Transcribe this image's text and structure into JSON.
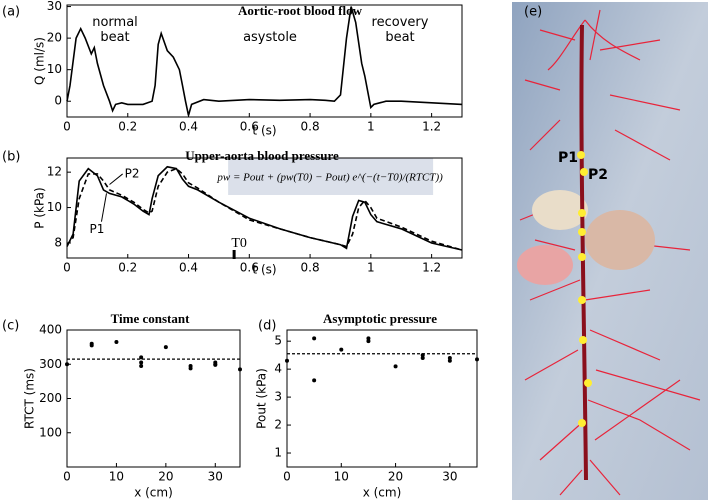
{
  "chart_data": [
    {
      "type": "line",
      "panel_label": "(a)",
      "title": "Aortic-root blood flow",
      "x_label": "t (s)",
      "y_label": "Q (ml/s)",
      "xlim": [
        0,
        1.3
      ],
      "ylim": [
        -5,
        30.5
      ],
      "xticks": [
        0,
        0.2,
        0.4,
        0.6,
        0.8,
        1,
        1.2
      ],
      "yticks": [
        0,
        10,
        20,
        30
      ],
      "annotations": [
        "normal beat",
        "asystole",
        "recovery beat"
      ],
      "x": [
        0,
        0.01,
        0.03,
        0.045,
        0.06,
        0.08,
        0.09,
        0.1,
        0.12,
        0.14,
        0.15,
        0.16,
        0.18,
        0.2,
        0.25,
        0.28,
        0.29,
        0.3,
        0.31,
        0.33,
        0.35,
        0.37,
        0.38,
        0.39,
        0.4,
        0.41,
        0.45,
        0.5,
        0.6,
        0.7,
        0.8,
        0.85,
        0.88,
        0.9,
        0.92,
        0.935,
        0.95,
        0.97,
        0.98,
        0.99,
        1.0,
        1.01,
        1.05,
        1.1,
        1.2,
        1.3
      ],
      "series": [
        {
          "color": "#000000",
          "dash": false,
          "values": [
            0,
            5,
            20,
            23,
            20,
            15,
            17,
            12,
            5,
            0,
            -3,
            -1,
            -0.5,
            -1,
            -1,
            0,
            5,
            18,
            21.5,
            16,
            14,
            10,
            5,
            0,
            -4.5,
            -1,
            0.5,
            0,
            0.5,
            0.3,
            0.5,
            0.3,
            0,
            2,
            20,
            30,
            25,
            12,
            8,
            3,
            -2,
            -1,
            0,
            0,
            -0.5,
            -1
          ]
        }
      ]
    },
    {
      "type": "line",
      "panel_label": "(b)",
      "title": "Upper-aorta blood pressure",
      "x_label": "t (s)",
      "y_label": "P (kPa)",
      "xlim": [
        0,
        1.3
      ],
      "ylim": [
        7.15,
        12.8
      ],
      "xticks": [
        0,
        0.2,
        0.4,
        0.6,
        0.8,
        1,
        1.2
      ],
      "yticks": [
        8,
        10,
        12
      ],
      "formula": "pw = Pout + (pw(T0) − Pout) e^(−(t−T0)/(RTCT))",
      "marker": {
        "label": "T0",
        "x": 0.55
      },
      "x": [
        0,
        0.02,
        0.04,
        0.07,
        0.1,
        0.12,
        0.14,
        0.18,
        0.22,
        0.25,
        0.27,
        0.28,
        0.3,
        0.33,
        0.36,
        0.38,
        0.4,
        0.43,
        0.5,
        0.6,
        0.7,
        0.8,
        0.9,
        0.92,
        0.94,
        0.96,
        0.98,
        1.0,
        1.02,
        1.1,
        1.2,
        1.3
      ],
      "series": [
        {
          "name": "P1",
          "color": "#000000",
          "dash": false,
          "values": [
            7.8,
            8.5,
            11.5,
            12.2,
            11.8,
            11.0,
            10.8,
            10.6,
            10.2,
            9.8,
            9.6,
            10.5,
            11.8,
            12.3,
            12.2,
            11.6,
            11.2,
            11.0,
            10.3,
            9.4,
            8.8,
            8.3,
            7.9,
            7.7,
            9.5,
            10.4,
            10.3,
            9.6,
            9.2,
            8.8,
            8.0,
            7.6
          ]
        },
        {
          "name": "P2",
          "color": "#000000",
          "dash": true,
          "values": [
            7.9,
            8.3,
            10.5,
            11.9,
            11.9,
            11.5,
            11.0,
            10.7,
            10.3,
            9.9,
            9.7,
            9.8,
            11.2,
            12.0,
            12.2,
            11.9,
            11.4,
            11.1,
            10.3,
            9.3,
            8.8,
            8.3,
            7.9,
            7.8,
            8.5,
            10.0,
            10.4,
            10.0,
            9.4,
            8.9,
            8.1,
            7.6
          ]
        }
      ]
    },
    {
      "type": "scatter",
      "panel_label": "(c)",
      "title": "Time constant",
      "x_label": "x (cm)",
      "y_label": "RTCT (ms)",
      "xlim": [
        0,
        35
      ],
      "ylim": [
        0,
        400
      ],
      "xticks": [
        0,
        10,
        20,
        30
      ],
      "yticks": [
        100,
        200,
        300,
        400
      ],
      "color": "#000000",
      "reference_line": 315,
      "x": [
        0,
        5,
        5,
        10,
        15,
        15,
        15,
        20,
        25,
        25,
        30,
        30,
        30,
        35
      ],
      "values": [
        300,
        360,
        355,
        365,
        320,
        305,
        295,
        350,
        295,
        288,
        305,
        300,
        298,
        285
      ]
    },
    {
      "type": "scatter",
      "panel_label": "(d)",
      "title": "Asymptotic pressure",
      "x_label": "x (cm)",
      "y_label": "Pout (kPa)",
      "xlim": [
        0,
        35
      ],
      "ylim": [
        0.5,
        5.4
      ],
      "xticks": [
        0,
        10,
        20,
        30
      ],
      "yticks": [
        1,
        2,
        3,
        4,
        5
      ],
      "color": "#000000",
      "reference_line": 4.55,
      "x": [
        0,
        5,
        5,
        10,
        15,
        15,
        20,
        25,
        25,
        30,
        30,
        35
      ],
      "values": [
        4.3,
        5.1,
        3.6,
        4.7,
        5.0,
        5.1,
        4.1,
        4.4,
        4.5,
        4.3,
        4.4,
        4.35
      ]
    }
  ],
  "photo": {
    "panel_label": "(e)",
    "labels": [
      "P1",
      "P2"
    ]
  }
}
